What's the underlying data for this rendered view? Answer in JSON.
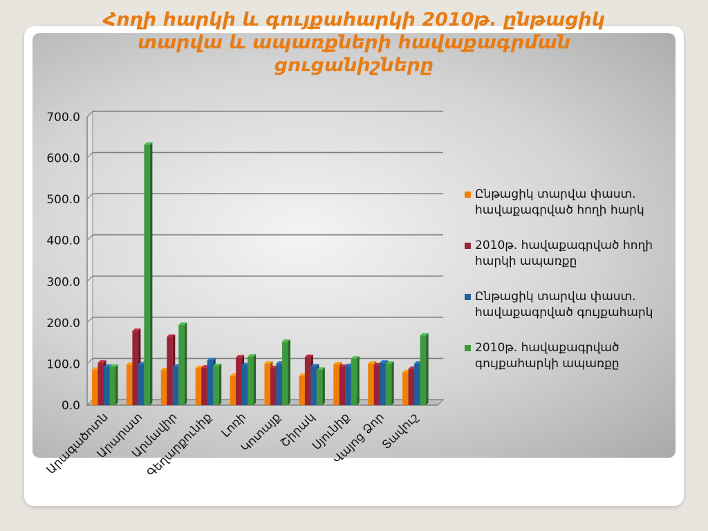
{
  "title": [
    "Հողի հարկի և գույքահարկի  2010թ. ընթացիկ",
    "տարվա և ապառքների հավաքագրման",
    "ցուցանիշները"
  ],
  "colors": {
    "background": "#e7e5dd",
    "title": "#e87b12",
    "series": [
      "#f07f09",
      "#9b2335",
      "#1f5f9c",
      "#3f9a3f"
    ]
  },
  "chart_data": {
    "type": "bar",
    "categories": [
      "Արագածոտն",
      "Արարատ",
      "Արմավիր",
      "Գեղարքունիք",
      "Լոռի",
      "Կոտայք",
      "Շիրակ",
      "Սյունիք",
      "Վայոց Ձոր",
      "Տավուշ"
    ],
    "series": [
      {
        "name": "Ընթացիկ տարվա փաստ. հավաքագրված հողի հարկ",
        "values": [
          86,
          98,
          85,
          90,
          71,
          101,
          71,
          99,
          101,
          80
        ]
      },
      {
        "name": "2010թ. հավաքագրված հողի հարկի ապառքը",
        "values": [
          103,
          180,
          166,
          91,
          116,
          90,
          117,
          93,
          97,
          88
        ]
      },
      {
        "name": "Ընթացիկ տարվա փաստ. հավաքագրված գույքահարկ",
        "values": [
          93,
          99,
          93,
          109,
          97,
          101,
          94,
          95,
          103,
          101
        ]
      },
      {
        "name": "2010թ. հավաքագրված գույքահարկի ապառքը",
        "values": [
          93,
          632,
          195,
          95,
          118,
          154,
          86,
          113,
          101,
          169
        ]
      }
    ],
    "ylim": [
      0,
      700
    ],
    "yticks": [
      "0.0",
      "100.0",
      "200.0",
      "300.0",
      "400.0",
      "500.0",
      "600.0",
      "700.0"
    ],
    "grid": true,
    "legend_position": "right"
  }
}
